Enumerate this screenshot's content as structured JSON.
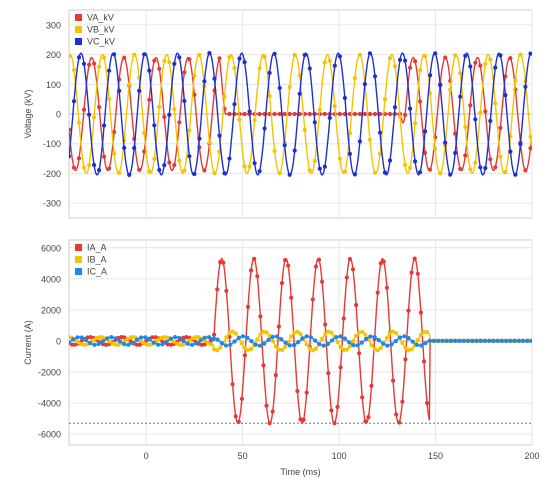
{
  "chart_data": [
    {
      "type": "line",
      "ylabel": "Voltage (kV)",
      "xlabel": "",
      "xlim": [
        -40,
        200
      ],
      "ylim": [
        -350,
        350
      ],
      "yticks": [
        -300,
        -200,
        -100,
        0,
        100,
        200,
        300
      ],
      "xticks": [],
      "grid": true,
      "legend": "top-left",
      "series": [
        {
          "name": "VA_kV",
          "color": "#e53935",
          "model": "sine",
          "amplitude": 190,
          "phase_deg": -20,
          "freq_hz": 60,
          "sample_step_ms": 2.6,
          "collapse_ms": [
            38,
            135
          ],
          "collapse_value": 0
        },
        {
          "name": "VB_kV",
          "color": "#f5c400",
          "model": "sine",
          "amplitude": 200,
          "phase_deg": -140,
          "freq_hz": 60,
          "sample_step_ms": 2.6
        },
        {
          "name": "VC_kV",
          "color": "#1e2fd1",
          "model": "sine",
          "amplitude": 205,
          "phase_deg": 100,
          "freq_hz": 60,
          "sample_step_ms": 2.6
        }
      ]
    },
    {
      "type": "line",
      "ylabel": "Current (A)",
      "xlabel": "Time (ms)",
      "xlim": [
        -40,
        200
      ],
      "ylim": [
        -6700,
        6500
      ],
      "yticks": [
        -6000,
        -4000,
        -2000,
        0,
        2000,
        4000,
        6000
      ],
      "xticks": [
        0,
        50,
        100,
        150,
        200
      ],
      "grid": true,
      "legend": "top-left",
      "reference_line": {
        "value": -5300,
        "style": "dotted"
      },
      "series": [
        {
          "name": "IA_A",
          "color": "#e53935",
          "model": "fault",
          "pre_amplitude": 250,
          "fault_amplitude": 5300,
          "fault_peaks": [
            5350,
            5300,
            5300,
            5300,
            5250,
            4000
          ],
          "fault_troughs": [
            -5300,
            -5300,
            -5300,
            -5250,
            -5300,
            -1400
          ],
          "phase_deg": 0,
          "freq_hz": 60,
          "sample_step_ms": 1.6,
          "fault_window_ms": [
            35,
            147
          ],
          "post_value": 0
        },
        {
          "name": "IB_A",
          "color": "#f5c400",
          "model": "fault",
          "pre_amplitude": 250,
          "fault_amplitude": 600,
          "phase_deg": -120,
          "freq_hz": 60,
          "sample_step_ms": 1.6,
          "fault_window_ms": [
            35,
            147
          ],
          "post_value": 0
        },
        {
          "name": "IC_A",
          "color": "#1e88e5",
          "model": "fault",
          "pre_amplitude": 250,
          "fault_amplitude": 300,
          "phase_deg": 120,
          "freq_hz": 60,
          "sample_step_ms": 2.2,
          "fault_window_ms": [
            35,
            147
          ],
          "post_value": 0
        }
      ]
    }
  ]
}
